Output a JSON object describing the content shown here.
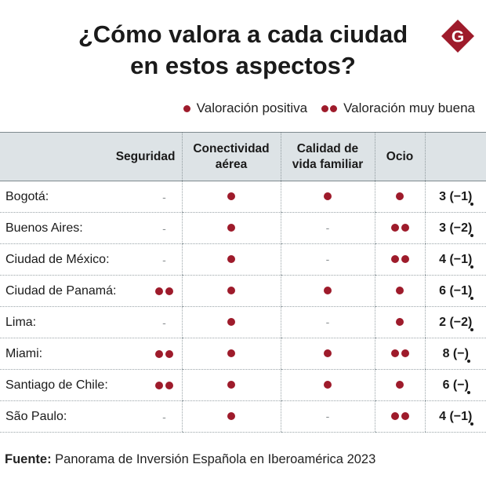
{
  "title_line1": "¿Cómo valora a cada ciudad",
  "title_line2": "en estos aspectos?",
  "logo_letter": "G",
  "brand_color": "#9e1b2b",
  "legend": {
    "positive": "Valoración positiva",
    "very_good": "Valoración muy buena"
  },
  "headers": {
    "seguridad": "Seguridad",
    "conectividad_1": "Conectividad",
    "conectividad_2": "aérea",
    "calidad_1": "Calidad de",
    "calidad_2": "vida familiar",
    "ocio": "Ocio"
  },
  "rows": [
    {
      "city": "Bogotá:",
      "seguridad": "-",
      "conectividad": "1",
      "calidad": "1",
      "ocio": "1",
      "score": "3 (−1)"
    },
    {
      "city": "Buenos Aires:",
      "seguridad": "-",
      "conectividad": "1",
      "calidad": "-",
      "ocio": "2",
      "score": "3 (−2)"
    },
    {
      "city": "Ciudad de México:",
      "seguridad": "-",
      "conectividad": "1",
      "calidad": "-",
      "ocio": "2",
      "score": "4 (−1)"
    },
    {
      "city": "Ciudad de Panamá:",
      "seguridad": "2",
      "conectividad": "1",
      "calidad": "1",
      "ocio": "1",
      "score": "6 (−1)"
    },
    {
      "city": "Lima:",
      "seguridad": "-",
      "conectividad": "1",
      "calidad": "-",
      "ocio": "1",
      "score": "2 (−2)"
    },
    {
      "city": "Miami:",
      "seguridad": "2",
      "conectividad": "1",
      "calidad": "1",
      "ocio": "2",
      "score": "8 (−)"
    },
    {
      "city": "Santiago de Chile:",
      "seguridad": "2",
      "conectividad": "1",
      "calidad": "1",
      "ocio": "1",
      "score": "6 (−)"
    },
    {
      "city": "São Paulo:",
      "seguridad": "-",
      "conectividad": "1",
      "calidad": "-",
      "ocio": "2",
      "score": "4 (−1)"
    }
  ],
  "source_label": "Fuente:",
  "source_text": " Panorama de Inversión Española en Iberoamérica 2023"
}
